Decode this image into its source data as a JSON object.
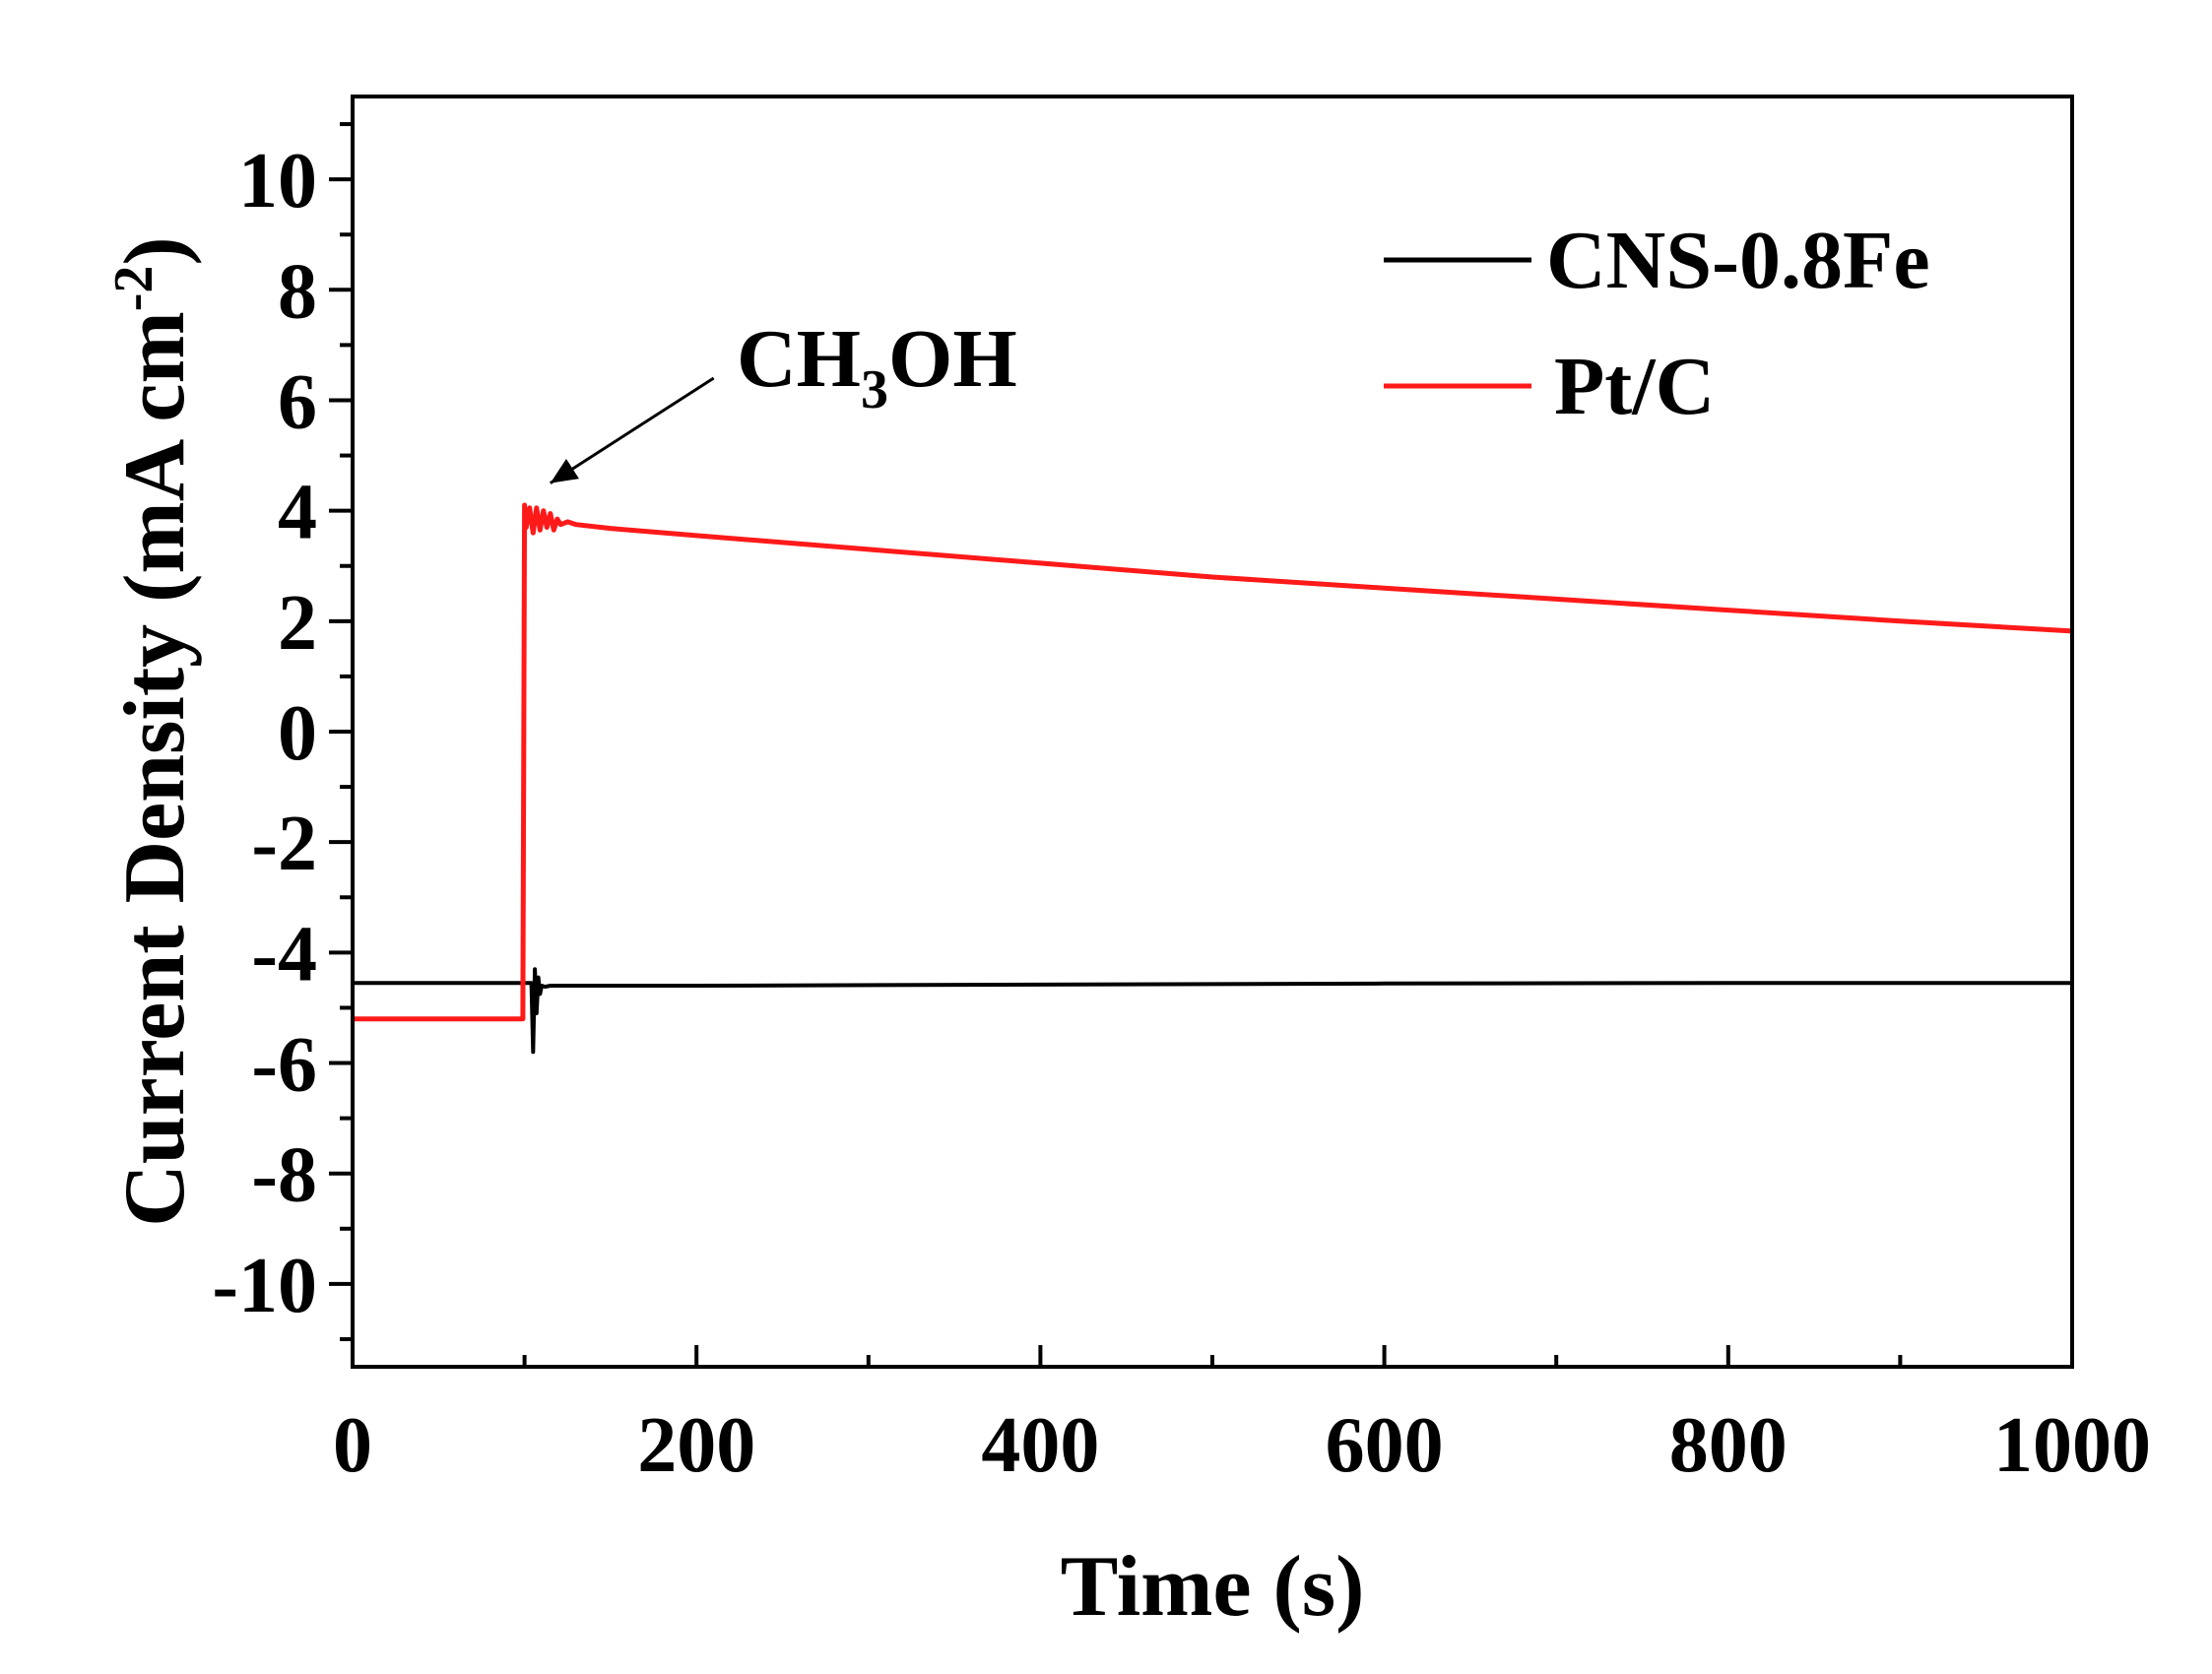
{
  "chart_data": {
    "type": "line",
    "title": "",
    "xlabel": "Time (s)",
    "ylabel": {
      "main": "Current Density (mA cm",
      "sup": "-2",
      "close": ")"
    },
    "xlim": [
      0,
      1000
    ],
    "ylim": [
      -11.5,
      11.5
    ],
    "xticks": [
      0,
      200,
      400,
      600,
      800,
      1000
    ],
    "yticks": [
      -10,
      -8,
      -6,
      -4,
      -2,
      0,
      2,
      4,
      6,
      8,
      10
    ],
    "grid": false,
    "legend_position": "top-right",
    "series": [
      {
        "name": "CNS-0.8Fe",
        "color": "#000000",
        "x": [
          0,
          100,
          104,
          105,
          106,
          107,
          108,
          109,
          110,
          112,
          115,
          120,
          200,
          400,
          600,
          800,
          1000
        ],
        "y": [
          -4.55,
          -4.55,
          -4.55,
          -5.8,
          -4.3,
          -5.1,
          -4.45,
          -4.75,
          -4.6,
          -4.62,
          -4.6,
          -4.6,
          -4.6,
          -4.58,
          -4.56,
          -4.55,
          -4.55
        ]
      },
      {
        "name": "Pt/C",
        "color": "#ff1a1a",
        "x": [
          0,
          99,
          100,
          101,
          103,
          105,
          107,
          109,
          111,
          113,
          115,
          117,
          119,
          121,
          125,
          130,
          150,
          200,
          300,
          400,
          500,
          600,
          700,
          800,
          900,
          1000
        ],
        "y": [
          -5.2,
          -5.2,
          4.1,
          3.7,
          4.05,
          3.6,
          4.05,
          3.65,
          4.0,
          3.7,
          3.95,
          3.65,
          3.85,
          3.75,
          3.8,
          3.75,
          3.68,
          3.55,
          3.3,
          3.05,
          2.8,
          2.6,
          2.4,
          2.2,
          2.0,
          1.82
        ]
      }
    ],
    "annotations": [
      {
        "text_main": "CH",
        "text_sub": "3",
        "text_end": "OH",
        "arrow_to": [
          115,
          4.5
        ],
        "arrow_from": [
          210,
          6.4
        ]
      }
    ]
  }
}
